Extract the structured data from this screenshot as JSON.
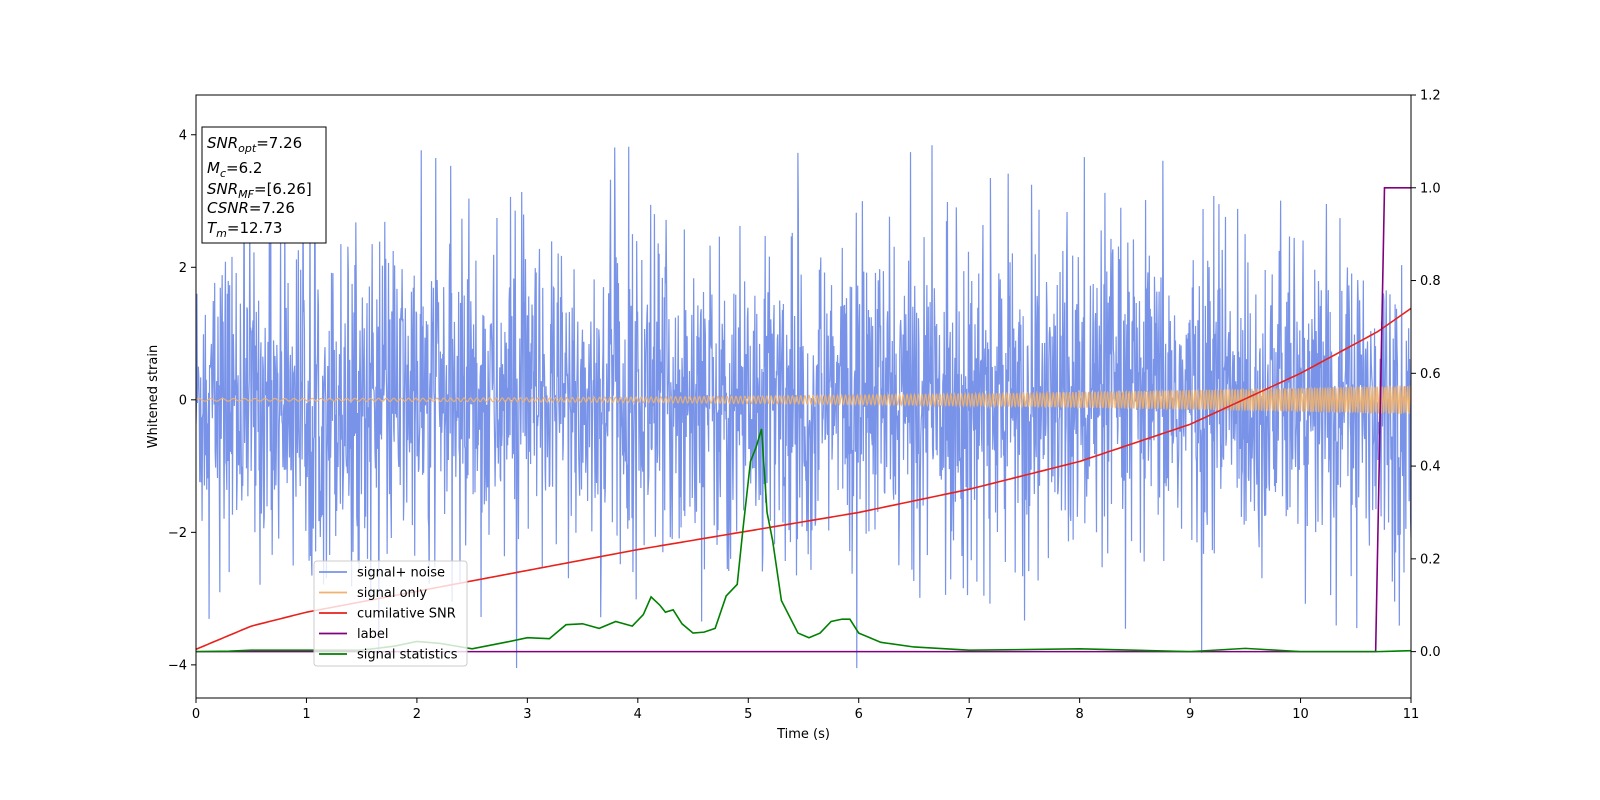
{
  "chart_data": {
    "type": "line",
    "title": "",
    "xlabel": "Time (s)",
    "ylabel": "Whitened strain",
    "xlim": [
      0,
      11
    ],
    "ylim": [
      -4.5,
      4.6
    ],
    "y2lim": [
      -0.1,
      1.2
    ],
    "xticks": [
      "0",
      "1",
      "2",
      "3",
      "4",
      "5",
      "6",
      "7",
      "8",
      "9",
      "10",
      "11"
    ],
    "yticks": [
      "−4",
      "−2",
      "0",
      "2",
      "4"
    ],
    "y2ticks": [
      "0.0",
      "0.2",
      "0.4",
      "0.6",
      "0.8",
      "1.0",
      "1.2"
    ],
    "legend_position": "lower-left",
    "grid": false,
    "info_box": {
      "lines": [
        {
          "base": "SNR",
          "sub": "opt",
          "rest": "=7.26"
        },
        {
          "base": "M",
          "sub": "c",
          "rest": "=6.2"
        },
        {
          "base": "SNR",
          "sub": "MF",
          "rest": "=[6.26]"
        },
        {
          "base": "CSNR",
          "sub": "",
          "rest": "=7.26"
        },
        {
          "base": "T",
          "sub": "m",
          "rest": "=12.73"
        }
      ]
    },
    "series": [
      {
        "name": "signal+ noise",
        "color": "#7893e8",
        "axis": "left",
        "noise_envelope": {
          "typical_max": 2.3,
          "typical_min": -2.3,
          "peak_max": 3.85,
          "peak_min": -4.05
        }
      },
      {
        "name": "signal only",
        "color": "#f2b26b",
        "axis": "left",
        "amplitude_start": 0.02,
        "amplitude_end": 0.22
      },
      {
        "name": "cumilative SNR",
        "color": "#e8211c",
        "axis": "right",
        "x": [
          0,
          0.5,
          1,
          2,
          3,
          4,
          5,
          6,
          7,
          8,
          9,
          10,
          10.7,
          11
        ],
        "y": [
          0.005,
          0.055,
          0.085,
          0.13,
          0.175,
          0.22,
          0.26,
          0.3,
          0.35,
          0.41,
          0.49,
          0.6,
          0.69,
          0.74
        ]
      },
      {
        "name": "label",
        "color": "#800080",
        "axis": "right",
        "x": [
          0,
          10.68,
          10.72,
          10.76,
          11
        ],
        "y": [
          0,
          0,
          0.5,
          1.0,
          1.0
        ]
      },
      {
        "name": "signal statistics",
        "color": "#008000",
        "axis": "right",
        "x": [
          0,
          0.3,
          0.5,
          1.5,
          1.8,
          2.0,
          2.2,
          2.5,
          2.8,
          3.0,
          3.2,
          3.35,
          3.5,
          3.65,
          3.8,
          3.95,
          4.05,
          4.12,
          4.2,
          4.25,
          4.32,
          4.4,
          4.5,
          4.6,
          4.7,
          4.8,
          4.9,
          4.95,
          5.02,
          5.07,
          5.12,
          5.17,
          5.22,
          5.3,
          5.45,
          5.55,
          5.65,
          5.75,
          5.85,
          5.92,
          6.0,
          6.2,
          6.5,
          7.0,
          8.0,
          9.0,
          9.5,
          10.0,
          10.7,
          11.0
        ],
        "y": [
          0,
          0.001,
          0.003,
          0.003,
          0.012,
          0.022,
          0.018,
          0.006,
          0.02,
          0.03,
          0.028,
          0.058,
          0.06,
          0.05,
          0.065,
          0.055,
          0.08,
          0.118,
          0.1,
          0.085,
          0.09,
          0.06,
          0.04,
          0.042,
          0.05,
          0.12,
          0.145,
          0.26,
          0.41,
          0.44,
          0.48,
          0.3,
          0.24,
          0.11,
          0.04,
          0.03,
          0.04,
          0.065,
          0.07,
          0.07,
          0.04,
          0.02,
          0.01,
          0.003,
          0.006,
          0.0,
          0.007,
          0.0,
          0.0,
          0.002
        ]
      }
    ]
  }
}
